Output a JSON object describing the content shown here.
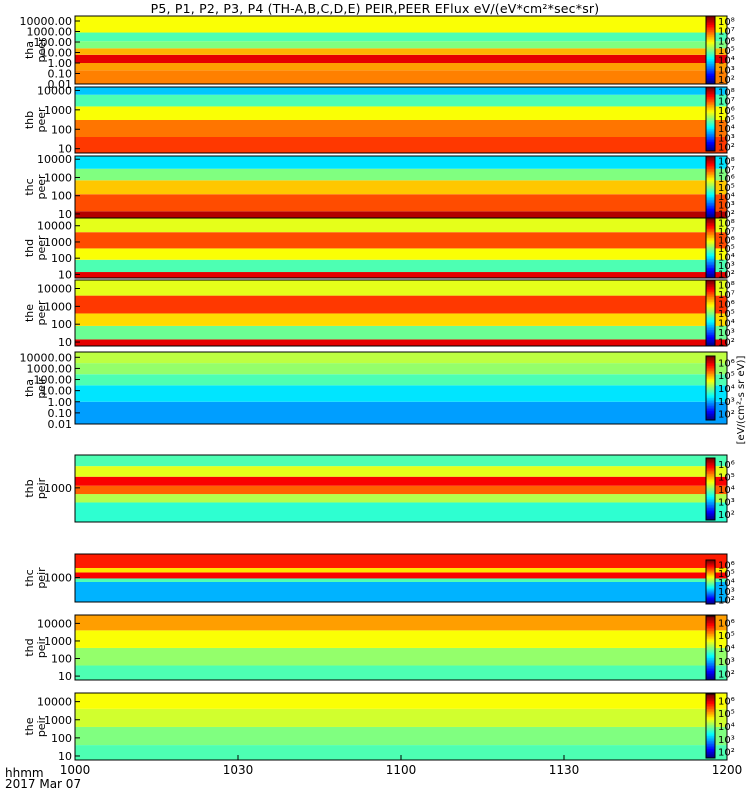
{
  "title": "P5, P1, P2, P3, P4 (TH-A,B,C,D,E) PEIR,PEER EFlux eV/(eV*cm²*sec*sr)",
  "time_axis": {
    "label_line1": "hhmm",
    "label_line2": "2017 Mar 07",
    "ticks": [
      "1000",
      "1030",
      "1100",
      "1130",
      "1200"
    ],
    "minutes": [
      0,
      30,
      60,
      90,
      120
    ]
  },
  "colorbar_label": "[eV/(cm²-s sr eV)]",
  "chart_data": [
    {
      "type": "heatmap",
      "probe": "tha",
      "instrument": "peer",
      "ylabel": [
        "tha",
        "peer"
      ],
      "scale": "log",
      "ylim": [
        0.01,
        30000
      ],
      "yticks": [
        "0.01",
        "0.10",
        "1.00",
        "10.00",
        "100.00",
        "1000.00",
        "10000.00"
      ],
      "cbar_ticks": [
        "10²",
        "10³",
        "10⁴",
        "10⁵",
        "10⁶",
        "10⁷",
        "10⁸"
      ],
      "clim_exp": [
        1.5,
        8.5
      ]
    },
    {
      "type": "heatmap",
      "probe": "thb",
      "instrument": "peer",
      "ylabel": [
        "thb",
        "peer"
      ],
      "scale": "log",
      "ylim": [
        6,
        15000
      ],
      "yticks": [
        "10",
        "100",
        "1000",
        "10000"
      ],
      "cbar_ticks": [
        "10²",
        "10³",
        "10⁴",
        "10⁵",
        "10⁶",
        "10⁷",
        "10⁸"
      ],
      "clim_exp": [
        1.5,
        8.5
      ]
    },
    {
      "type": "heatmap",
      "probe": "thc",
      "instrument": "peer",
      "ylabel": [
        "thc",
        "peer"
      ],
      "scale": "log",
      "ylim": [
        6,
        15000
      ],
      "yticks": [
        "10",
        "100",
        "1000",
        "10000"
      ],
      "cbar_ticks": [
        "10²",
        "10³",
        "10⁴",
        "10⁵",
        "10⁶",
        "10⁷",
        "10⁸"
      ],
      "clim_exp": [
        1.5,
        8.5
      ]
    },
    {
      "type": "heatmap",
      "probe": "thd",
      "instrument": "peer",
      "ylabel": [
        "thd",
        "peer"
      ],
      "scale": "log",
      "ylim": [
        6,
        30000
      ],
      "yticks": [
        "10",
        "100",
        "1000",
        "10000"
      ],
      "cbar_ticks": [
        "10²",
        "10³",
        "10⁴",
        "10⁵",
        "10⁶",
        "10⁷",
        "10⁸"
      ],
      "clim_exp": [
        1.5,
        8.5
      ]
    },
    {
      "type": "heatmap",
      "probe": "the",
      "instrument": "peer",
      "ylabel": [
        "the",
        "peer"
      ],
      "scale": "log",
      "ylim": [
        6,
        30000
      ],
      "yticks": [
        "10",
        "100",
        "1000",
        "10000"
      ],
      "cbar_ticks": [
        "10²",
        "10³",
        "10⁴",
        "10⁵",
        "10⁶",
        "10⁷",
        "10⁸"
      ],
      "clim_exp": [
        1.5,
        8.5
      ]
    },
    {
      "type": "heatmap",
      "probe": "tha",
      "instrument": "peir",
      "ylabel": [
        "tha",
        "peir"
      ],
      "scale": "log",
      "ylim": [
        0.01,
        30000
      ],
      "yticks": [
        "0.01",
        "0.10",
        "1.00",
        "10.00",
        "100.00",
        "1000.00",
        "10000.00"
      ],
      "cbar_ticks": [
        "10²",
        "10³",
        "10⁴",
        "10⁵",
        "10⁶"
      ],
      "clim_exp": [
        1.5,
        6.5
      ]
    },
    {
      "type": "heatmap",
      "probe": "thb",
      "instrument": "peir",
      "ylabel": [
        "thb",
        "peir"
      ],
      "scale": "log",
      "ylim": [
        60,
        15000
      ],
      "yticks": [
        "1000"
      ],
      "cbar_ticks": [
        "10²",
        "10³",
        "10⁴",
        "10⁵",
        "10⁶"
      ],
      "clim_exp": [
        1.5,
        6.5
      ]
    },
    {
      "type": "heatmap",
      "probe": "thc",
      "instrument": "peir",
      "ylabel": [
        "thc",
        "peir"
      ],
      "scale": "log",
      "ylim": [
        60,
        15000
      ],
      "yticks": [
        "1000"
      ],
      "cbar_ticks": [
        "10²",
        "10³",
        "10⁴",
        "10⁵",
        "10⁶"
      ],
      "clim_exp": [
        1.5,
        6.5
      ]
    },
    {
      "type": "heatmap",
      "probe": "thd",
      "instrument": "peir",
      "ylabel": [
        "thd",
        "peir"
      ],
      "scale": "log",
      "ylim": [
        6,
        30000
      ],
      "yticks": [
        "10",
        "100",
        "1000",
        "10000"
      ],
      "cbar_ticks": [
        "10²",
        "10³",
        "10⁴",
        "10⁵",
        "10⁶"
      ],
      "clim_exp": [
        1.5,
        6.5
      ]
    },
    {
      "type": "heatmap",
      "probe": "the",
      "instrument": "peir",
      "ylabel": [
        "the",
        "peir"
      ],
      "scale": "log",
      "ylim": [
        6,
        30000
      ],
      "yticks": [
        "10",
        "100",
        "1000",
        "10000"
      ],
      "cbar_ticks": [
        "10²",
        "10³",
        "10⁴",
        "10⁵",
        "10⁶"
      ],
      "clim_exp": [
        1.5,
        6.5
      ]
    }
  ]
}
